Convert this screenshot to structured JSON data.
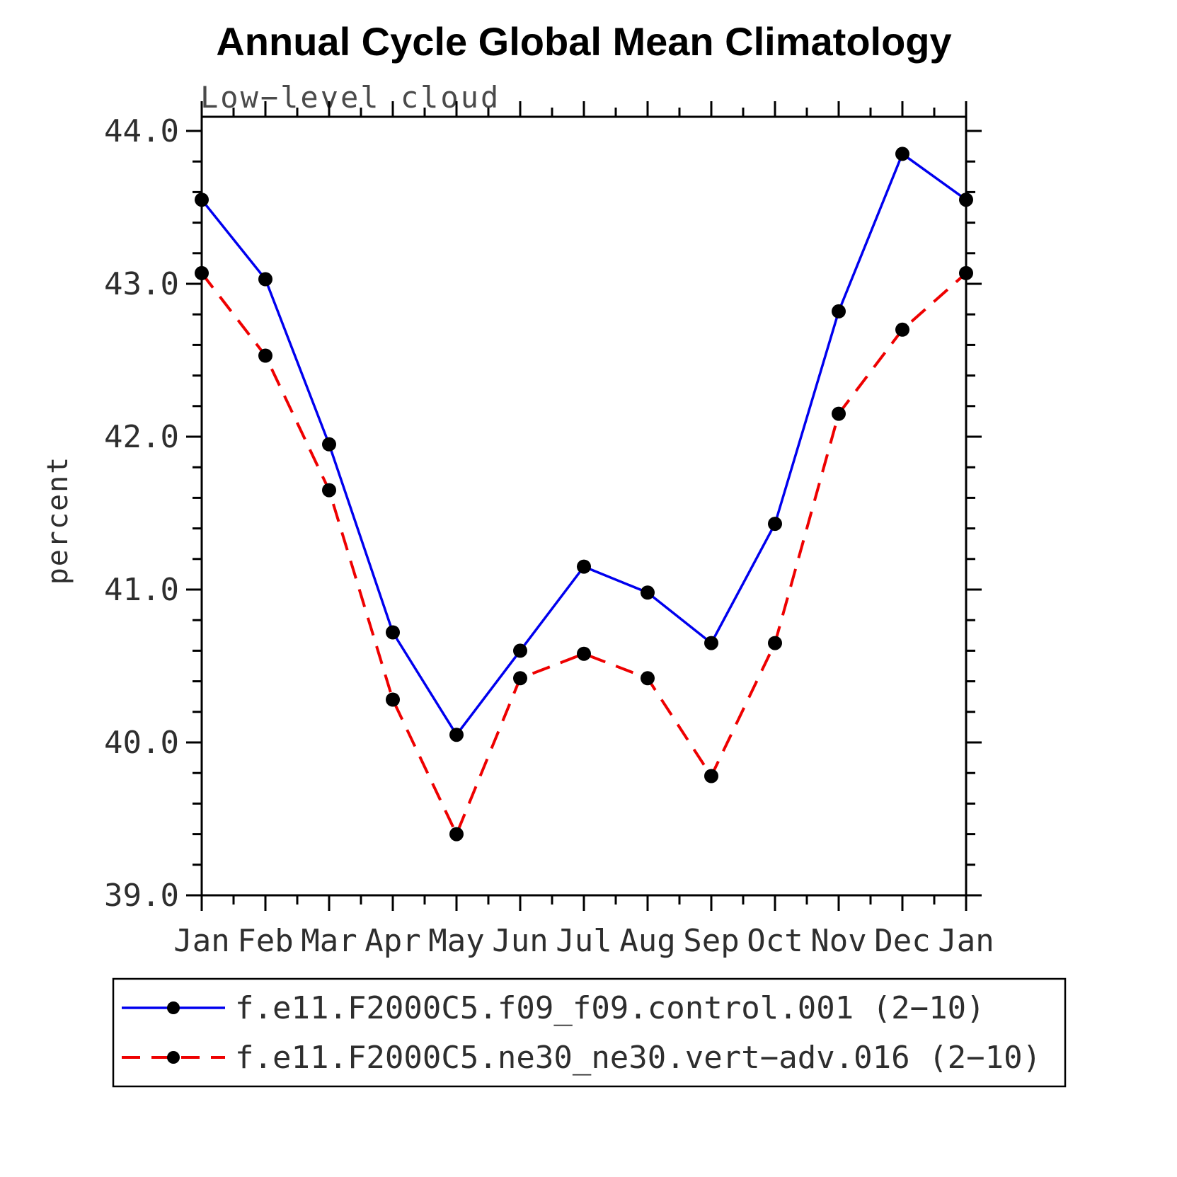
{
  "page": {
    "title": "Annual Cycle Global Mean Climatology"
  },
  "chart_data": {
    "type": "line",
    "title": "Annual Cycle Global Mean Climatology",
    "subtitle": "Low−level cloud",
    "xlabel": "",
    "ylabel": "percent",
    "x_tick_labels": [
      "Jan",
      "Feb",
      "Mar",
      "Apr",
      "May",
      "Jun",
      "Jul",
      "Aug",
      "Sep",
      "Oct",
      "Nov",
      "Dec",
      "Jan"
    ],
    "ylim": [
      39.0,
      44.0
    ],
    "y_major_ticks": [
      39.0,
      40.0,
      41.0,
      42.0,
      43.0,
      44.0
    ],
    "y_minor_step": 0.2,
    "grid": false,
    "legend_position": "bottom",
    "series": [
      {
        "name": "f.e11.F2000C5.f09_f09.control.001 (2−10)",
        "color": "#0000ee",
        "style": "solid",
        "marker": "circle",
        "marker_color": "#000000",
        "values": [
          43.55,
          43.03,
          41.95,
          40.72,
          40.05,
          40.6,
          41.15,
          40.98,
          40.65,
          41.43,
          42.82,
          43.85,
          43.55
        ]
      },
      {
        "name": "f.e11.F2000C5.ne30_ne30.vert−adv.016 (2−10)",
        "color": "#ee0000",
        "style": "dashed",
        "marker": "circle",
        "marker_color": "#000000",
        "values": [
          43.07,
          42.53,
          41.65,
          40.28,
          39.4,
          40.42,
          40.58,
          40.42,
          39.78,
          40.65,
          42.15,
          42.7,
          43.07
        ]
      }
    ]
  }
}
